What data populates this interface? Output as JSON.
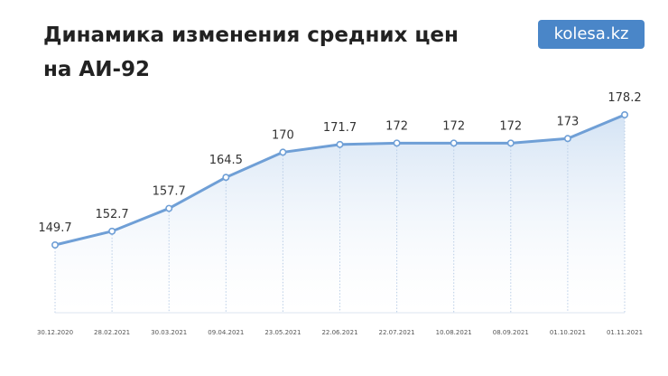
{
  "chart_data": {
    "type": "line",
    "title": "Динамика изменения средних цен на АИ-92",
    "logo": "kolesa.kz",
    "categories": [
      "30.12.2020",
      "28.02.2021",
      "30.03.2021",
      "09.04.2021",
      "23.05.2021",
      "22.06.2021",
      "22.07.2021",
      "10.08.2021",
      "08.09.2021",
      "01.10.2021",
      "01.11.2021"
    ],
    "values": [
      149.7,
      152.7,
      157.7,
      164.5,
      170,
      171.7,
      172,
      172,
      172,
      173,
      178.2
    ],
    "color": "#6f9fd6"
  }
}
